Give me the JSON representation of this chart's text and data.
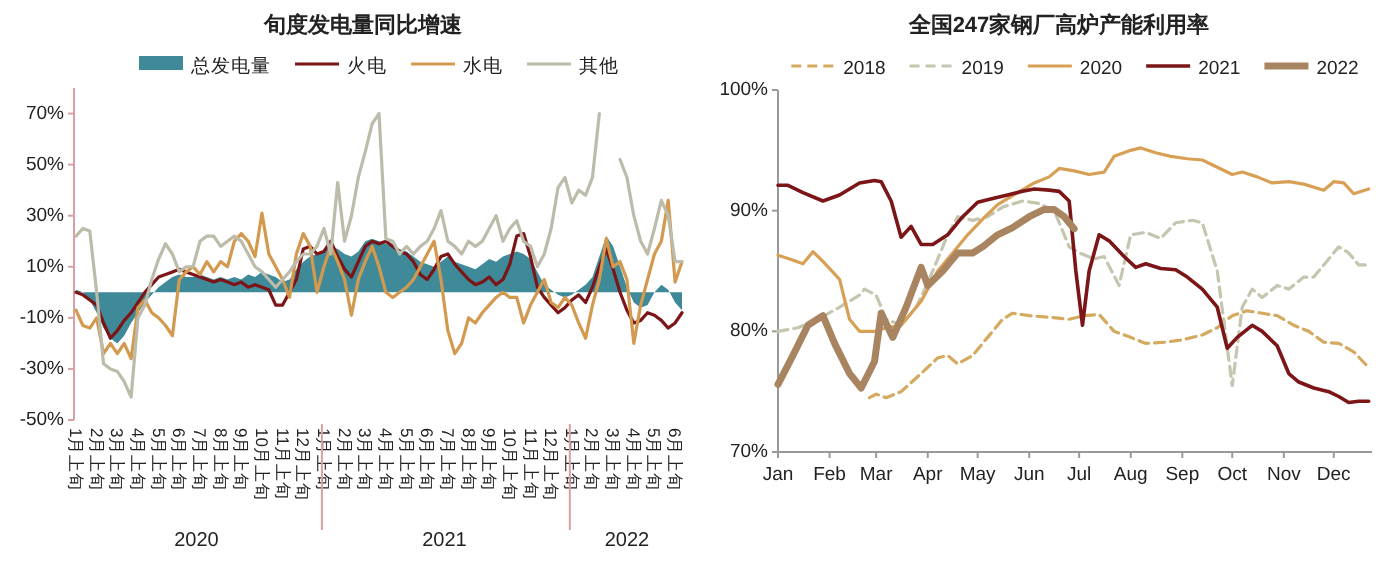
{
  "chart_data": [
    {
      "type": "line",
      "title": "旬度发电量同比增速",
      "legend": "top",
      "categories": [
        "1月上旬",
        null,
        null,
        "2月上旬",
        null,
        null,
        "3月上旬",
        null,
        null,
        "4月上旬",
        null,
        null,
        "5月上旬",
        null,
        null,
        "6月上旬",
        null,
        null,
        "7月上旬",
        null,
        null,
        "8月上旬",
        null,
        null,
        "9月上旬",
        null,
        null,
        "10月上旬",
        null,
        null,
        "11月上旬",
        null,
        null,
        "12月上旬",
        null,
        null,
        "1月上旬",
        null,
        null,
        "2月上旬",
        null,
        null,
        "3月上旬",
        null,
        null,
        "4月上旬",
        null,
        null,
        "5月上旬",
        null,
        null,
        "6月上旬",
        null,
        null,
        "7月上旬",
        null,
        null,
        "8月上旬",
        null,
        null,
        "9月上旬",
        null,
        null,
        "10月上旬",
        null,
        null,
        "11月上旬",
        null,
        null,
        "12月上旬",
        null,
        null,
        "1月上旬",
        null,
        null,
        "2月上旬",
        null,
        null,
        "3月上旬",
        null,
        null,
        "4月上旬",
        null,
        null,
        "5月上旬",
        null,
        null,
        "6月上旬",
        null
      ],
      "annotations": [
        "2020",
        "2021",
        "2022"
      ],
      "ylim": [
        -50,
        80
      ],
      "yticks": [
        {
          "value": -50,
          "label": "-50%"
        },
        {
          "value": -30,
          "label": "-30%"
        },
        {
          "value": -10,
          "label": "-10%"
        },
        {
          "value": 10,
          "label": "10%"
        },
        {
          "value": 30,
          "label": "30%"
        },
        {
          "value": 50,
          "label": "50%"
        },
        {
          "value": 70,
          "label": "70%"
        }
      ],
      "series": [
        {
          "name": "总发电量",
          "type": "area",
          "color": "#3e8a99",
          "values": [
            1,
            0,
            -3,
            -8,
            -14,
            -18,
            -20,
            -17,
            -12,
            -8,
            -4,
            -1,
            2,
            4,
            6,
            7,
            6,
            6,
            7,
            6,
            5,
            6,
            5,
            6,
            5,
            7,
            6,
            8,
            7,
            6,
            4,
            5,
            9,
            12,
            14,
            15,
            16,
            18,
            17,
            15,
            14,
            16,
            20,
            21,
            20,
            19,
            18,
            17,
            16,
            14,
            12,
            11,
            10,
            12,
            14,
            12,
            11,
            10,
            9,
            11,
            13,
            12,
            14,
            15,
            16,
            15,
            13,
            8,
            3,
            1,
            -1,
            -2,
            -1,
            1,
            3,
            6,
            14,
            22,
            18,
            10,
            2,
            -4,
            -6,
            -5,
            0,
            3,
            1,
            -4,
            -7
          ]
        },
        {
          "name": "火电",
          "color": "#7b1518",
          "values": [
            0,
            -1,
            -3,
            -5,
            -12,
            -18,
            -15,
            -11,
            -8,
            -4,
            0,
            3,
            6,
            7,
            8,
            9,
            8,
            7,
            6,
            5,
            4,
            5,
            4,
            3,
            4,
            2,
            3,
            2,
            1,
            -5,
            -5,
            0,
            5,
            17,
            18,
            15,
            16,
            20,
            14,
            9,
            6,
            12,
            18,
            20,
            19,
            20,
            18,
            16,
            15,
            12,
            7,
            5,
            9,
            14,
            15,
            11,
            8,
            5,
            3,
            4,
            6,
            3,
            5,
            11,
            22,
            23,
            14,
            2,
            -2,
            -5,
            -8,
            -6,
            -3,
            -1,
            -4,
            2,
            10,
            17,
            9,
            0,
            -7,
            -12,
            -11,
            -8,
            -9,
            -11,
            -14,
            -12,
            -8
          ]
        },
        {
          "name": "水电",
          "color": "#d39a4f",
          "values": [
            -7,
            -13,
            -14,
            -10,
            -24,
            -20,
            -24,
            -20,
            -26,
            -6,
            -3,
            -8,
            -10,
            -13,
            -17,
            5,
            8,
            10,
            7,
            12,
            8,
            12,
            10,
            20,
            23,
            20,
            14,
            31,
            15,
            10,
            5,
            -2,
            15,
            23,
            18,
            0,
            10,
            18,
            12,
            5,
            -9,
            5,
            12,
            18,
            10,
            0,
            -2,
            0,
            2,
            5,
            10,
            15,
            20,
            5,
            -15,
            -24,
            -20,
            -10,
            -12,
            -8,
            -5,
            -2,
            0,
            -2,
            -2,
            -12,
            -5,
            0,
            5,
            -4,
            -6,
            -2,
            -5,
            -12,
            -18,
            -5,
            5,
            21,
            10,
            12,
            5,
            -20,
            -5,
            5,
            15,
            20,
            36,
            4,
            12
          ]
        },
        {
          "name": "其他",
          "color": "#bdbbaa",
          "values": [
            22,
            25,
            24,
            0,
            -28,
            -30,
            -31,
            -35,
            -41,
            -10,
            -5,
            5,
            13,
            19,
            15,
            8,
            10,
            10,
            20,
            22,
            22,
            18,
            20,
            22,
            20,
            15,
            10,
            8,
            5,
            2,
            5,
            8,
            12,
            15,
            15,
            18,
            25,
            15,
            43,
            20,
            30,
            45,
            55,
            66,
            70,
            21,
            20,
            15,
            18,
            15,
            18,
            20,
            25,
            32,
            20,
            18,
            15,
            20,
            18,
            20,
            25,
            30,
            20,
            25,
            28,
            20,
            18,
            10,
            15,
            25,
            41,
            45,
            35,
            40,
            38,
            45,
            70,
            null,
            null,
            52,
            45,
            30,
            20,
            15,
            25,
            36,
            30,
            12,
            12
          ]
        }
      ]
    },
    {
      "type": "line",
      "title": "全国247家钢厂高炉产能利用率",
      "legend": "top",
      "xlim": [
        "--01-01",
        "--12-24"
      ],
      "xticks": [
        {
          "value": "--01-01",
          "label": "Jan"
        },
        {
          "value": "--02-01",
          "label": "Feb"
        },
        {
          "value": "--03-01",
          "label": "Mar"
        },
        {
          "value": "--04-01",
          "label": "Apr"
        },
        {
          "value": "--05-01",
          "label": "May"
        },
        {
          "value": "--06-01",
          "label": "Jun"
        },
        {
          "value": "--07-01",
          "label": "Jul"
        },
        {
          "value": "--08-01",
          "label": "Aug"
        },
        {
          "value": "--09-01",
          "label": "Sep"
        },
        {
          "value": "--10-01",
          "label": "Oct"
        },
        {
          "value": "--11-01",
          "label": "Nov"
        },
        {
          "value": "--12-01",
          "label": "Dec"
        }
      ],
      "ylim": [
        70,
        100
      ],
      "yticks": [
        {
          "value": 70,
          "label": "70%"
        },
        {
          "value": 80,
          "label": "80%"
        },
        {
          "value": 90,
          "label": "90%"
        },
        {
          "value": 100,
          "label": "100%"
        }
      ],
      "series": [
        {
          "name": "2018",
          "color": "#d4aa60",
          "line_style": "dashed",
          "x": [
            "--02-25",
            "--03-01",
            "--03-07",
            "--03-16",
            "--03-28",
            "--04-07",
            "--04-13",
            "--04-19",
            "--04-28",
            "--05-07",
            "--05-16",
            "--05-22",
            "--06-01",
            "--06-10",
            "--06-25",
            "--07-04",
            "--07-13",
            "--07-22",
            "--08-01",
            "--08-10",
            "--08-22",
            "--09-01",
            "--09-13",
            "--09-22",
            "--10-01",
            "--10-10",
            "--10-19",
            "--10-28",
            "--11-07",
            "--11-16",
            "--11-25",
            "--12-04",
            "--12-13",
            "--12-22"
          ],
          "values": [
            74.5,
            74.8,
            74.5,
            75,
            76.5,
            77.8,
            78,
            77.3,
            78,
            79.5,
            81,
            81.5,
            81.3,
            81.2,
            81,
            81.3,
            81.4,
            80,
            79.5,
            79,
            79.1,
            79.3,
            79.7,
            80.3,
            81.3,
            81.7,
            81.5,
            81.3,
            80.5,
            80,
            79.1,
            79,
            78.3,
            77
          ]
        },
        {
          "name": "2019",
          "color": "#c5c5b0",
          "line_style": "dashed",
          "x": [
            "--01-01",
            "--01-13",
            "--01-25",
            "--02-07",
            "--02-19",
            "--02-22",
            "--03-01",
            "--03-07",
            "--03-16",
            "--03-25",
            "--04-01",
            "--04-07",
            "--04-13",
            "--04-19",
            "--04-28",
            "--05-07",
            "--05-16",
            "--05-28",
            "--06-07",
            "--06-16",
            "--06-25",
            "--07-01",
            "--07-10",
            "--07-16",
            "--07-25",
            "--08-01",
            "--08-10",
            "--08-19",
            "--08-28",
            "--09-07",
            "--09-13",
            "--09-22",
            "--10-01",
            "--10-07",
            "--10-13",
            "--10-19",
            "--10-28",
            "--11-04",
            "--11-13",
            "--11-19",
            "--11-28",
            "--12-04",
            "--12-10",
            "--12-16",
            "--12-22"
          ],
          "values": [
            80,
            80.3,
            81,
            82,
            83,
            83.5,
            83,
            81,
            80.5,
            82,
            84,
            86,
            88,
            89.5,
            89.2,
            89.5,
            90.3,
            90.8,
            90.6,
            90,
            87,
            86.5,
            86,
            86.2,
            83.8,
            88,
            88.2,
            87.7,
            89,
            89.2,
            89,
            85,
            75.5,
            82,
            83.5,
            82.8,
            83.8,
            83.5,
            84.5,
            84.5,
            86,
            87,
            86.5,
            85.5,
            85.5
          ]
        },
        {
          "name": "2020",
          "color": "#d8a055",
          "line_style": "solid",
          "x": [
            "--01-01",
            "--01-08",
            "--01-16",
            "--01-22",
            "--01-28",
            "--02-07",
            "--02-13",
            "--02-19",
            "--02-28",
            "--03-07",
            "--03-16",
            "--03-28",
            "--04-07",
            "--04-16",
            "--04-25",
            "--05-04",
            "--05-13",
            "--05-25",
            "--06-04",
            "--06-13",
            "--06-19",
            "--06-28",
            "--07-07",
            "--07-16",
            "--07-22",
            "--08-01",
            "--08-07",
            "--08-16",
            "--08-25",
            "--09-04",
            "--09-13",
            "--09-22",
            "--10-01",
            "--10-07",
            "--10-16",
            "--10-25",
            "--11-04",
            "--11-13",
            "--11-25",
            "--12-01",
            "--12-07",
            "--12-13",
            "--12-22"
          ],
          "values": [
            86.3,
            86,
            85.6,
            86.6,
            85.8,
            84.3,
            81,
            80,
            80,
            80.3,
            80.5,
            82.5,
            85,
            86.5,
            88,
            89.3,
            90.5,
            91.5,
            92.3,
            92.8,
            93.5,
            93.3,
            93,
            93.2,
            94.5,
            95,
            95.2,
            94.8,
            94.5,
            94.3,
            94.2,
            93.6,
            93,
            93.2,
            92.8,
            92.3,
            92.4,
            92.2,
            91.7,
            92.4,
            92.3,
            91.4,
            91.8
          ]
        },
        {
          "name": "2021",
          "color": "#7b1518",
          "line_style": "solid",
          "x": [
            "--01-01",
            "--01-07",
            "--01-16",
            "--01-28",
            "--02-07",
            "--02-19",
            "--02-28",
            "--03-04",
            "--03-10",
            "--03-16",
            "--03-22",
            "--03-28",
            "--04-04",
            "--04-13",
            "--04-22",
            "--05-01",
            "--05-10",
            "--05-19",
            "--05-28",
            "--06-04",
            "--06-13",
            "--06-19",
            "--06-25",
            "--06-29",
            "--07-03",
            "--07-07",
            "--07-13",
            "--07-19",
            "--07-28",
            "--08-04",
            "--08-10",
            "--08-19",
            "--08-28",
            "--09-04",
            "--09-13",
            "--09-22",
            "--09-28",
            "--10-04",
            "--10-13",
            "--10-19",
            "--10-28",
            "--11-04",
            "--11-10",
            "--11-19",
            "--11-28",
            "--12-04",
            "--12-10",
            "--12-16",
            "--12-22"
          ],
          "values": [
            92.1,
            92.1,
            91.5,
            90.8,
            91.3,
            92.3,
            92.5,
            92.4,
            90.8,
            87.8,
            88.7,
            87.2,
            87.2,
            88,
            89.5,
            90.7,
            91,
            91.3,
            91.6,
            91.8,
            91.7,
            91.6,
            90.8,
            85,
            80.5,
            85,
            88,
            87.5,
            86.2,
            85.3,
            85.6,
            85.2,
            85.1,
            84.5,
            83.5,
            82,
            78.6,
            79.5,
            80.5,
            80,
            78.8,
            76.5,
            75.8,
            75.3,
            75,
            74.6,
            74.1,
            74.2,
            74.2
          ]
        },
        {
          "name": "2022",
          "color": "#a88560",
          "line_style": "solid",
          "x": [
            "--01-01",
            "--01-10",
            "--01-19",
            "--01-28",
            "--02-04",
            "--02-13",
            "--02-20",
            "--02-28",
            "--03-04",
            "--03-11",
            "--03-19",
            "--03-28",
            "--04-01",
            "--04-10",
            "--04-19",
            "--04-28",
            "--05-04",
            "--05-13",
            "--05-22",
            "--06-01",
            "--06-10",
            "--06-16",
            "--06-22",
            "--06-28"
          ],
          "values": [
            75.6,
            78,
            80.5,
            81.3,
            79,
            76.5,
            75.3,
            77.5,
            81.5,
            79.5,
            82,
            85.3,
            83.8,
            85,
            86.5,
            86.5,
            87,
            88,
            88.6,
            89.5,
            90.1,
            90.1,
            89.5,
            88.5
          ]
        }
      ]
    }
  ]
}
